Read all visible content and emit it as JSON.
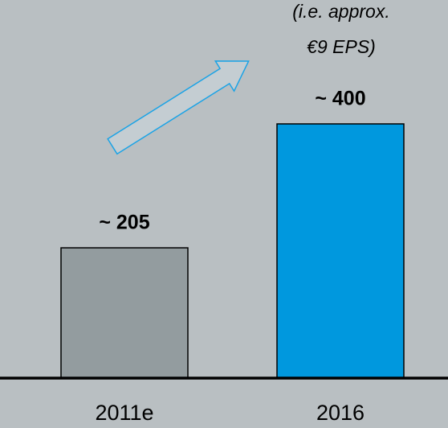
{
  "chart_data": {
    "type": "bar",
    "categories": [
      "2011e",
      "2016"
    ],
    "values": [
      205,
      400
    ],
    "value_labels": [
      "~ 205",
      "~ 400"
    ],
    "colors": [
      "#939c9f",
      "#0098de"
    ],
    "annotation": [
      "(i.e. approx.",
      "€9 EPS)"
    ]
  }
}
